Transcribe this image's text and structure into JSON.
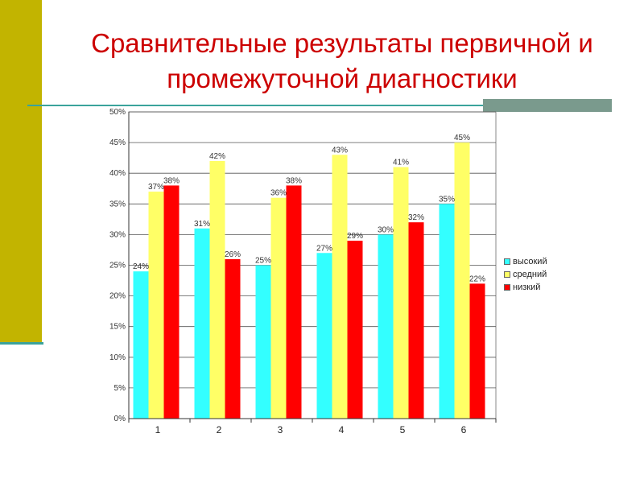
{
  "page": {
    "title": "Сравнительные результаты первичной и промежуточной диагностики"
  },
  "chart_data": {
    "type": "bar",
    "categories": [
      "1",
      "2",
      "3",
      "4",
      "5",
      "6"
    ],
    "series": [
      {
        "name": "высокий",
        "values": [
          24,
          31,
          25,
          27,
          30,
          35
        ],
        "color": "#33ffff"
      },
      {
        "name": "средний",
        "values": [
          37,
          42,
          36,
          43,
          41,
          45
        ],
        "color": "#ffff66"
      },
      {
        "name": "низкий",
        "values": [
          38,
          26,
          38,
          29,
          32,
          22
        ],
        "color": "#ff0000"
      }
    ],
    "data_labels": [
      [
        "24%",
        "31%",
        "25%",
        "27%",
        "30%",
        "35%"
      ],
      [
        "37%",
        "42%",
        "36%",
        "43%",
        "41%",
        "45%"
      ],
      [
        "38%",
        "26%",
        "38%",
        "29%",
        "32%",
        "22%"
      ]
    ],
    "ylim": [
      0,
      50
    ],
    "yticks": [
      "0%",
      "5%",
      "10%",
      "15%",
      "20%",
      "25%",
      "30%",
      "35%",
      "40%",
      "45%",
      "50%"
    ],
    "grid": true,
    "legend_position": "right"
  }
}
